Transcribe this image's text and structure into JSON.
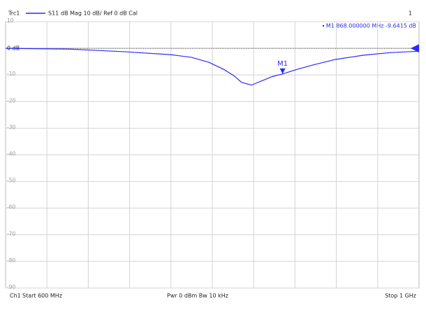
{
  "chart_data": {
    "type": "line",
    "trace": "Trc1",
    "trace_info": "dB Mag  10 dB/ Ref 0 dB  Cal",
    "window": "1",
    "x": [
      600,
      662,
      716,
      760,
      780,
      797,
      811,
      821,
      828,
      832,
      838,
      843,
      848,
      858,
      868,
      882,
      899,
      919,
      946,
      973,
      1000
    ],
    "series": [
      {
        "name": "S11",
        "color": "#2a2aff",
        "values": [
          0,
          -0.3,
          -1.3,
          -2.4,
          -3.4,
          -5.3,
          -7.9,
          -10.3,
          -12.7,
          -13.2,
          -13.8,
          -13.0,
          -12.2,
          -10.6,
          -9.6415,
          -7.9,
          -6.1,
          -4.2,
          -2.6,
          -1.6,
          -1.1
        ]
      }
    ],
    "xlim": [
      600,
      1000
    ],
    "ylim": [
      -90,
      10
    ],
    "yticks": [
      10,
      {
        "value": 0,
        "label": "0 dB"
      },
      -10,
      -20,
      -30,
      -40,
      -50,
      -60,
      -70,
      -80,
      -90
    ],
    "grid": true,
    "reference": 0,
    "marker": {
      "label": "M1",
      "x": 868,
      "y": -9.6415,
      "readout": "M1  868.000000  MHz  -9.6415  dB"
    },
    "channel": "Ch1",
    "start": "Start 600 MHz",
    "power": "Pwr 0 dBm  Bw 10 kHz",
    "stop": "Stop 1 GHz"
  }
}
